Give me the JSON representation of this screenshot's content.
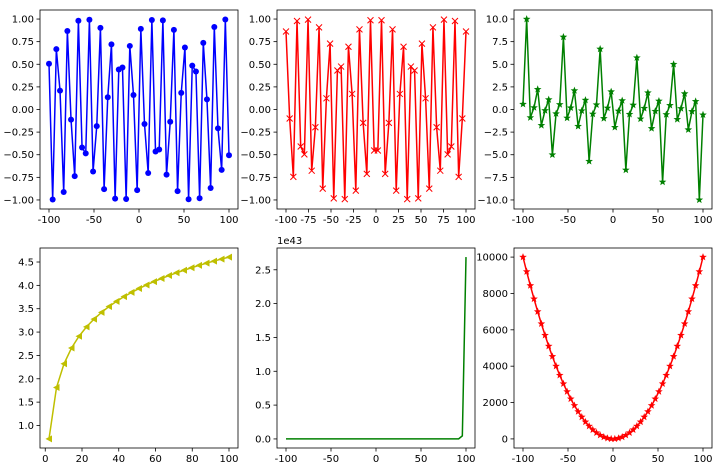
{
  "chart_data": [
    {
      "type": "line",
      "marker": "o",
      "color": "#0000ff",
      "x": [
        -100,
        -95.92,
        -91.84,
        -87.76,
        -83.67,
        -79.59,
        -75.51,
        -71.43,
        -67.35,
        -63.27,
        -59.18,
        -55.1,
        -51.02,
        -46.94,
        -42.86,
        -38.78,
        -34.69,
        -30.61,
        -26.53,
        -22.45,
        -18.37,
        -14.29,
        -10.2,
        -6.12,
        -2.04,
        2.04,
        6.12,
        10.2,
        14.29,
        18.37,
        22.45,
        26.53,
        30.61,
        34.69,
        38.78,
        42.86,
        46.94,
        51.02,
        55.1,
        59.18,
        63.27,
        67.35,
        71.43,
        75.51,
        79.59,
        83.67,
        87.76,
        91.84,
        95.92,
        100
      ],
      "values": [
        0.5064,
        -0.995,
        0.6672,
        0.208,
        -0.9126,
        0.8684,
        -0.1118,
        -0.7366,
        0.9806,
        -0.42,
        -0.4852,
        0.9923,
        -0.6854,
        -0.184,
        0.9023,
        -0.8802,
        0.1359,
        0.72,
        -0.9851,
        0.442,
        0.4637,
        -0.989,
        0.7027,
        0.16,
        -0.8916,
        0.8916,
        -0.16,
        -0.7027,
        0.989,
        -0.4637,
        -0.442,
        0.9851,
        -0.72,
        -0.1359,
        0.8802,
        -0.9023,
        0.184,
        0.6854,
        -0.9923,
        0.4852,
        0.42,
        -0.9806,
        0.7366,
        0.1118,
        -0.8684,
        0.9126,
        -0.208,
        -0.6672,
        0.995,
        -0.5064
      ],
      "xlim": [
        -110,
        110
      ],
      "ylim": [
        -1.1,
        1.1
      ],
      "xticks": [
        -100,
        -50,
        0,
        50,
        100
      ],
      "yticks": [
        {
          "value": -1,
          "label": "−1.00"
        },
        {
          "value": -0.75,
          "label": "−0.75"
        },
        {
          "value": -0.5,
          "label": "−0.50"
        },
        {
          "value": -0.25,
          "label": "−0.25"
        },
        {
          "value": 0,
          "label": "0.00"
        },
        {
          "value": 0.25,
          "label": "0.25"
        },
        {
          "value": 0.5,
          "label": "0.50"
        },
        {
          "value": 0.75,
          "label": "0.75"
        },
        {
          "value": 1,
          "label": "1.00"
        }
      ]
    },
    {
      "type": "line",
      "marker": "x",
      "color": "#ff0000",
      "x": [
        -100,
        -95.92,
        -91.84,
        -87.76,
        -83.67,
        -79.59,
        -75.51,
        -71.43,
        -67.35,
        -63.27,
        -59.18,
        -55.1,
        -51.02,
        -46.94,
        -42.86,
        -38.78,
        -34.69,
        -30.61,
        -26.53,
        -22.45,
        -18.37,
        -14.29,
        -10.2,
        -6.12,
        -2.04,
        2.04,
        6.12,
        10.2,
        14.29,
        18.37,
        22.45,
        26.53,
        30.61,
        34.69,
        38.78,
        42.86,
        46.94,
        51.02,
        55.1,
        59.18,
        63.27,
        67.35,
        71.43,
        75.51,
        79.59,
        83.67,
        87.76,
        91.84,
        95.92,
        100
      ],
      "values": [
        0.8623,
        -0.0996,
        -0.7449,
        0.9781,
        -0.4089,
        -0.4959,
        0.9937,
        -0.6764,
        -0.196,
        0.9075,
        -0.8744,
        0.1239,
        0.7282,
        -0.9829,
        0.4312,
        0.4746,
        -0.9907,
        0.694,
        0.1721,
        -0.897,
        0.886,
        -0.148,
        -0.7115,
        0.9871,
        -0.4529,
        -0.4529,
        0.9871,
        -0.7115,
        -0.148,
        0.886,
        -0.897,
        0.1721,
        0.694,
        -0.9907,
        0.4746,
        0.4312,
        -0.9829,
        0.7282,
        0.1239,
        -0.8744,
        0.9075,
        -0.196,
        -0.6764,
        0.9937,
        -0.4959,
        -0.4089,
        0.9781,
        -0.7449,
        -0.0996,
        0.8623
      ],
      "xlim": [
        -110,
        110
      ],
      "ylim": [
        -1.1,
        1.1
      ],
      "xticks": [
        -100,
        -75,
        -50,
        -25,
        0,
        25,
        50,
        75,
        100
      ],
      "yticks": [
        {
          "value": -1,
          "label": "−1.00"
        },
        {
          "value": -0.75,
          "label": "−0.75"
        },
        {
          "value": -0.5,
          "label": "−0.50"
        },
        {
          "value": -0.25,
          "label": "−0.25"
        },
        {
          "value": 0,
          "label": "0.00"
        },
        {
          "value": 0.25,
          "label": "0.25"
        },
        {
          "value": 0.5,
          "label": "0.50"
        },
        {
          "value": 0.75,
          "label": "0.75"
        },
        {
          "value": 1,
          "label": "1.00"
        }
      ]
    },
    {
      "type": "line",
      "marker": "*",
      "color": "#008000",
      "x": [
        -100,
        -95.92,
        -91.84,
        -87.76,
        -83.67,
        -79.59,
        -75.51,
        -71.43,
        -67.35,
        -63.27,
        -59.18,
        -55.1,
        -51.02,
        -46.94,
        -42.86,
        -38.78,
        -34.69,
        -30.61,
        -26.53,
        -22.45,
        -18.37,
        -14.29,
        -10.2,
        -6.12,
        -2.04,
        2.04,
        6.12,
        10.2,
        14.29,
        18.37,
        22.45,
        26.53,
        30.61,
        34.69,
        38.78,
        42.86,
        46.94,
        51.02,
        55.1,
        59.18,
        63.27,
        67.35,
        71.43,
        75.51,
        79.59,
        83.67,
        87.76,
        91.84,
        95.92,
        100
      ],
      "values": [
        0.5872,
        9.99,
        -0.8957,
        0.2126,
        2.232,
        -1.751,
        -0.1125,
        1.089,
        -5.003,
        -0.4628,
        0.5549,
        8.01,
        -0.9413,
        0.1872,
        2.093,
        -1.855,
        -0.1372,
        1.0375,
        -5.725,
        -0.4928,
        0.5234,
        6.683,
        -0.9877,
        0.1621,
        1.969,
        -1.969,
        -0.1621,
        0.9877,
        -6.683,
        -0.5234,
        0.4928,
        5.725,
        -1.0375,
        0.1372,
        1.855,
        -2.093,
        -0.1872,
        0.9413,
        -8.01,
        -0.5549,
        0.4628,
        5.003,
        -1.089,
        0.1125,
        1.751,
        -2.232,
        -0.2126,
        0.8957,
        -9.99,
        -0.5872
      ],
      "xlim": [
        -110,
        110
      ],
      "ylim": [
        -11,
        11
      ],
      "xticks": [
        -100,
        -50,
        0,
        50,
        100
      ],
      "yticks": [
        {
          "value": -10,
          "label": "−10.0"
        },
        {
          "value": -7.5,
          "label": "−7.5"
        },
        {
          "value": -5,
          "label": "−5.0"
        },
        {
          "value": -2.5,
          "label": "−2.5"
        },
        {
          "value": 0,
          "label": "0.0"
        },
        {
          "value": 2.5,
          "label": "2.5"
        },
        {
          "value": 5,
          "label": "5.0"
        },
        {
          "value": 7.5,
          "label": "7.5"
        },
        {
          "value": 10,
          "label": "10.0"
        }
      ]
    },
    {
      "type": "line",
      "marker": "<",
      "color": "#bfbf00",
      "x": [
        2.04,
        6.12,
        10.2,
        14.29,
        18.37,
        22.45,
        26.53,
        30.61,
        34.69,
        38.78,
        42.86,
        46.94,
        51.02,
        55.1,
        59.18,
        63.27,
        67.35,
        71.43,
        75.51,
        79.59,
        83.67,
        87.76,
        91.84,
        95.92,
        100
      ],
      "values": [
        0.713,
        1.812,
        2.322,
        2.659,
        2.911,
        3.111,
        3.278,
        3.421,
        3.547,
        3.658,
        3.758,
        3.849,
        3.932,
        4.009,
        4.081,
        4.147,
        4.21,
        4.269,
        4.324,
        4.377,
        4.427,
        4.475,
        4.52,
        4.563,
        4.605
      ],
      "xlim": [
        -2.86,
        104.9
      ],
      "ylim": [
        0.518,
        4.8
      ],
      "xticks": [
        0,
        20,
        40,
        60,
        80,
        100
      ],
      "yticks": [
        {
          "value": 1,
          "label": "1.0"
        },
        {
          "value": 1.5,
          "label": "1.5"
        },
        {
          "value": 2,
          "label": "2.0"
        },
        {
          "value": 2.5,
          "label": "2.5"
        },
        {
          "value": 3,
          "label": "3.0"
        },
        {
          "value": 3.5,
          "label": "3.5"
        },
        {
          "value": 4,
          "label": "4.0"
        },
        {
          "value": 4.5,
          "label": "4.5"
        }
      ]
    },
    {
      "type": "line",
      "marker": "none",
      "color": "#008000",
      "offset_text": "1e43",
      "x": [
        -100,
        -95.92,
        -91.84,
        -87.76,
        -83.67,
        -79.59,
        -75.51,
        -71.43,
        -67.35,
        -63.27,
        -59.18,
        -55.1,
        -51.02,
        -46.94,
        -42.86,
        -38.78,
        -34.69,
        -30.61,
        -26.53,
        -22.45,
        -18.37,
        -14.29,
        -10.2,
        -6.12,
        -2.04,
        2.04,
        6.12,
        10.2,
        14.29,
        18.37,
        22.45,
        26.53,
        30.61,
        34.69,
        38.78,
        42.86,
        46.94,
        51.02,
        55.1,
        59.18,
        63.27,
        67.35,
        71.43,
        75.51,
        79.59,
        83.67,
        87.76,
        91.84,
        95.92,
        100
      ],
      "values": [
        0,
        0,
        0,
        0,
        0,
        0,
        0,
        0,
        0,
        0,
        0,
        0,
        0,
        0,
        0,
        0,
        0,
        0,
        0,
        0,
        0,
        0,
        0,
        0,
        0,
        0,
        0,
        0,
        0,
        0,
        0,
        0,
        0,
        0,
        0,
        0,
        0,
        0,
        0,
        0,
        0,
        0,
        0,
        0,
        0,
        0,
        0,
        0.0008,
        0.0454,
        2.688
      ],
      "xlim": [
        -110,
        110
      ],
      "ylim": [
        -0.134,
        2.822
      ],
      "xticks": [
        -100,
        -50,
        0,
        50,
        100
      ],
      "yticks": [
        {
          "value": 0,
          "label": "0.0"
        },
        {
          "value": 0.5,
          "label": "0.5"
        },
        {
          "value": 1,
          "label": "1.0"
        },
        {
          "value": 1.5,
          "label": "1.5"
        },
        {
          "value": 2,
          "label": "2.0"
        },
        {
          "value": 2.5,
          "label": "2.5"
        }
      ]
    },
    {
      "type": "line",
      "marker": "*",
      "color": "#ff0000",
      "x": [
        -100,
        -95.92,
        -91.84,
        -87.76,
        -83.67,
        -79.59,
        -75.51,
        -71.43,
        -67.35,
        -63.27,
        -59.18,
        -55.1,
        -51.02,
        -46.94,
        -42.86,
        -38.78,
        -34.69,
        -30.61,
        -26.53,
        -22.45,
        -18.37,
        -14.29,
        -10.2,
        -6.12,
        -2.04,
        2.04,
        6.12,
        10.2,
        14.29,
        18.37,
        22.45,
        26.53,
        30.61,
        34.69,
        38.78,
        42.86,
        46.94,
        51.02,
        55.1,
        59.18,
        63.27,
        67.35,
        71.43,
        75.51,
        79.59,
        83.67,
        87.76,
        91.84,
        95.92,
        100
      ],
      "values": [
        10000,
        9200.6,
        8434.6,
        7701.8,
        7000.7,
        6334.6,
        5701.8,
        5102.2,
        4536,
        4003.1,
        3502.3,
        3036,
        2603,
        2203.4,
        1836.9,
        1503.9,
        1203.4,
        937,
        703.8,
        504,
        337.5,
        204.2,
        104,
        37.5,
        4.2,
        4.2,
        37.5,
        104,
        204.2,
        337.5,
        504,
        703.8,
        937,
        1203.4,
        1503.9,
        1836.9,
        2203.4,
        2603,
        3036,
        3502.3,
        4003.1,
        4536,
        5102.2,
        5701.8,
        6334.6,
        7000.7,
        7701.8,
        8434.6,
        9200.6,
        10000
      ],
      "xlim": [
        -110,
        110
      ],
      "ylim": [
        -500,
        10500
      ],
      "xticks": [
        -100,
        -50,
        0,
        50,
        100
      ],
      "yticks": [
        0,
        2000,
        4000,
        6000,
        8000,
        10000
      ]
    }
  ]
}
